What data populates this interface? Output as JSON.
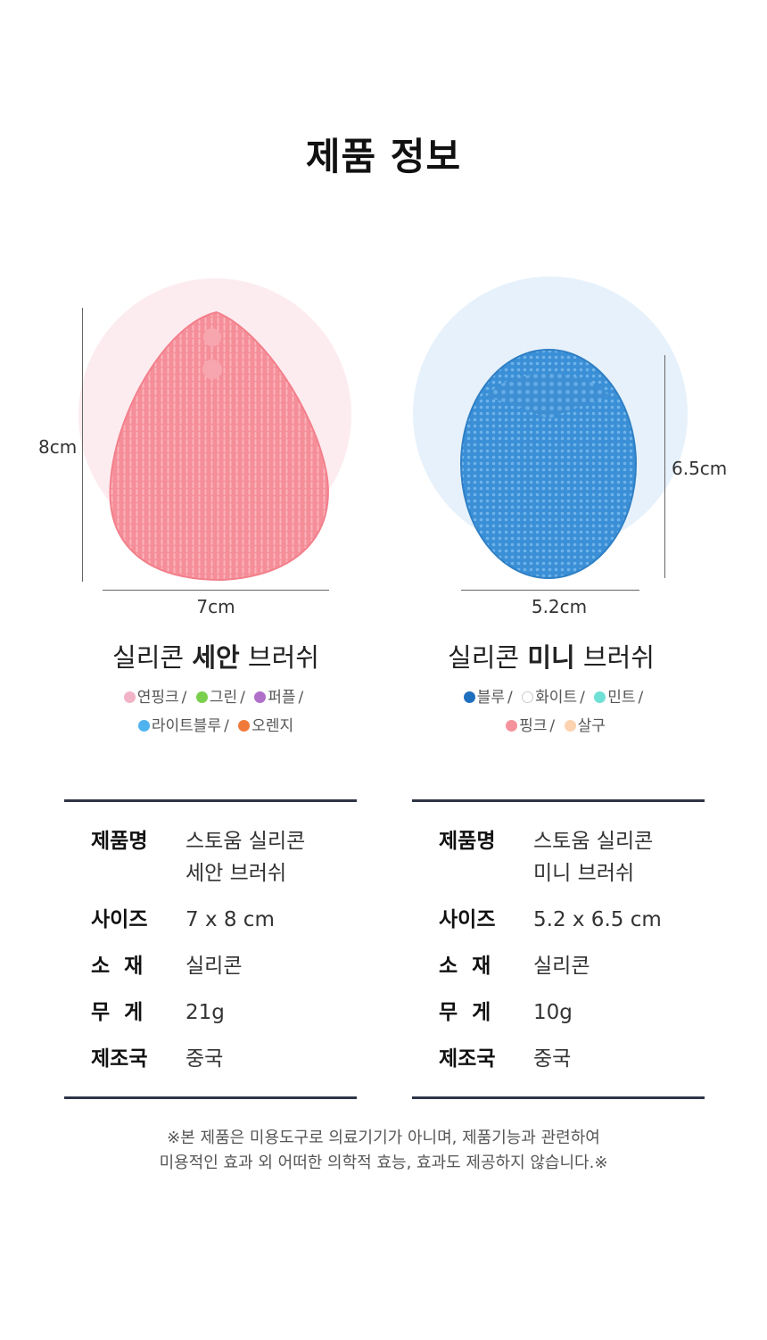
{
  "page_title": "제품 정보",
  "products": [
    {
      "title_regular_1": "실리콘 ",
      "title_bold": "세안",
      "title_regular_2": " 브러쉬",
      "height_label": "8cm",
      "width_label": "7cm",
      "brush_color": "#f48a95",
      "circle_color": "#fdecef",
      "colors_row1": [
        {
          "name": "연핑크",
          "hex": "#f2b3c6"
        },
        {
          "name": "그린",
          "hex": "#7ad04e"
        },
        {
          "name": "퍼플",
          "hex": "#b06fc9"
        }
      ],
      "colors_row2": [
        {
          "name": "라이트블루",
          "hex": "#4fb3f0"
        },
        {
          "name": "오렌지",
          "hex": "#f07a3a"
        }
      ],
      "specs": [
        {
          "key": "제품명",
          "value": "스토움 실리콘\n세안 브러쉬"
        },
        {
          "key": "사이즈",
          "value": "7 x 8 cm"
        },
        {
          "key": "소  재",
          "value": "실리콘"
        },
        {
          "key": "무  게",
          "value": "21g"
        },
        {
          "key": "제조국",
          "value": "중국"
        }
      ]
    },
    {
      "title_regular_1": "실리콘 ",
      "title_bold": "미니",
      "title_regular_2": " 브러쉬",
      "height_label": "6.5cm",
      "width_label": "5.2cm",
      "brush_color": "#3a8fd6",
      "circle_color": "#e6f1fb",
      "colors_row1": [
        {
          "name": "블루",
          "hex": "#1f6fbf"
        },
        {
          "name": "화이트",
          "hex": "#ffffff"
        },
        {
          "name": "민트",
          "hex": "#6fe0d6"
        }
      ],
      "colors_row2": [
        {
          "name": "핑크",
          "hex": "#f5939c"
        },
        {
          "name": "살구",
          "hex": "#fcd2b0"
        }
      ],
      "specs": [
        {
          "key": "제품명",
          "value": "스토움 실리콘\n미니 브러쉬"
        },
        {
          "key": "사이즈",
          "value": "5.2 x 6.5 cm"
        },
        {
          "key": "소  재",
          "value": "실리콘"
        },
        {
          "key": "무  게",
          "value": "10g"
        },
        {
          "key": "제조국",
          "value": "중국"
        }
      ]
    }
  ],
  "disclaimer_line1": "※본 제품은 미용도구로 의료기기가 아니며, 제품기능과 관련하여",
  "disclaimer_line2": "미용적인 효과 외 어떠한 의학적 효능, 효과도 제공하지 않습니다.※"
}
